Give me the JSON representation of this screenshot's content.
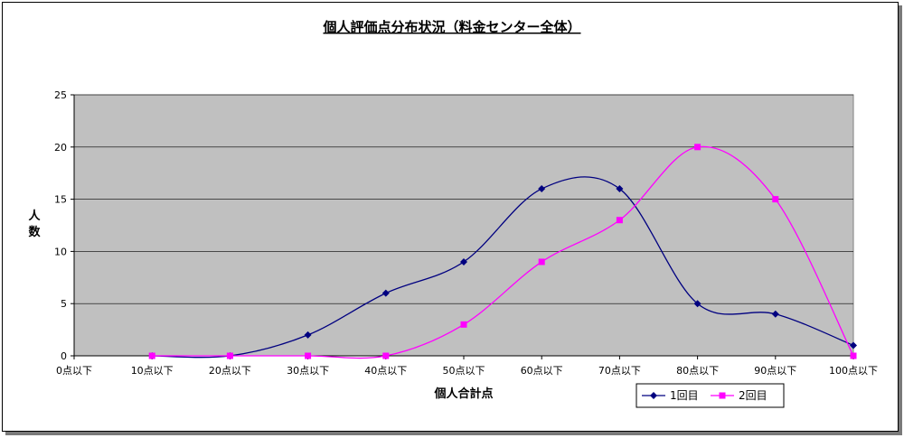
{
  "chart_data": {
    "type": "line",
    "title": "個人評価点分布状況（料金センター全体）",
    "xlabel": "個人合計点",
    "ylabel": "人数",
    "categories": [
      "0点以下",
      "10点以下",
      "20点以下",
      "30点以下",
      "40点以下",
      "50点以下",
      "60点以下",
      "70点以下",
      "80点以下",
      "90点以下",
      "100点以下"
    ],
    "ylim": [
      0,
      25
    ],
    "yticks": [
      0,
      5,
      10,
      15,
      20,
      25
    ],
    "grid": true,
    "legend_position": "bottom-right",
    "plot_background": "#C0C0C0",
    "series": [
      {
        "name": "1回目",
        "color": "#000080",
        "marker": "diamond",
        "values": [
          null,
          0,
          0,
          2,
          6,
          9,
          16,
          16,
          5,
          4,
          1
        ]
      },
      {
        "name": "2回目",
        "color": "#FF00FF",
        "marker": "square",
        "values": [
          null,
          0,
          0,
          0,
          0,
          3,
          9,
          13,
          20,
          15,
          0
        ]
      }
    ]
  }
}
